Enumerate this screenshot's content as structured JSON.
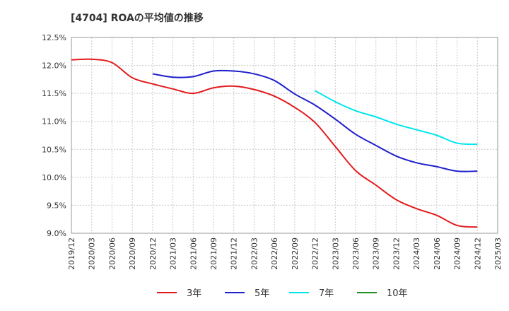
{
  "chart_data": {
    "type": "line",
    "title": "[4704]  ROAの平均値の推移",
    "xlabel": "",
    "ylabel": "",
    "x": [
      "2019/12",
      "2020/03",
      "2020/06",
      "2020/09",
      "2020/12",
      "2021/03",
      "2021/06",
      "2021/09",
      "2021/12",
      "2022/03",
      "2022/06",
      "2022/09",
      "2022/12",
      "2023/03",
      "2023/06",
      "2023/09",
      "2023/12",
      "2024/03",
      "2024/06",
      "2024/09",
      "2024/12"
    ],
    "x_ticks": [
      "2019/12",
      "2020/03",
      "2020/06",
      "2020/09",
      "2020/12",
      "2021/03",
      "2021/06",
      "2021/09",
      "2021/12",
      "2022/03",
      "2022/06",
      "2022/09",
      "2022/12",
      "2023/03",
      "2023/06",
      "2023/09",
      "2023/12",
      "2024/03",
      "2024/06",
      "2024/09",
      "2024/12",
      "2025/03"
    ],
    "y_ticks": [
      "12.5%",
      "12.0%",
      "11.5%",
      "11.0%",
      "10.5%",
      "10.0%",
      "9.5%",
      "9.0%"
    ],
    "ylim": [
      9.0,
      12.5
    ],
    "grid": true,
    "legend_position": "bottom",
    "series": [
      {
        "name": "3年",
        "color": "#e31a1c",
        "values": [
          12.1,
          12.11,
          12.05,
          11.78,
          11.67,
          11.58,
          11.5,
          11.6,
          11.63,
          11.57,
          11.45,
          11.25,
          10.98,
          10.55,
          10.12,
          9.86,
          9.6,
          9.44,
          9.32,
          9.14,
          9.11
        ]
      },
      {
        "name": "5年",
        "color": "#1f1fcc",
        "values": [
          null,
          null,
          null,
          null,
          11.85,
          11.79,
          11.8,
          11.9,
          11.9,
          11.85,
          11.73,
          11.49,
          11.29,
          11.04,
          10.77,
          10.57,
          10.38,
          10.26,
          10.19,
          10.11,
          10.11
        ]
      },
      {
        "name": "7年",
        "color": "#00e5ee",
        "values": [
          null,
          null,
          null,
          null,
          null,
          null,
          null,
          null,
          null,
          null,
          null,
          null,
          11.55,
          11.35,
          11.19,
          11.08,
          10.95,
          10.85,
          10.75,
          10.61,
          10.59
        ]
      },
      {
        "name": "10年",
        "color": "#228b22",
        "values": [
          null,
          null,
          null,
          null,
          null,
          null,
          null,
          null,
          null,
          null,
          null,
          null,
          null,
          null,
          null,
          null,
          null,
          null,
          null,
          null,
          null
        ]
      }
    ]
  }
}
